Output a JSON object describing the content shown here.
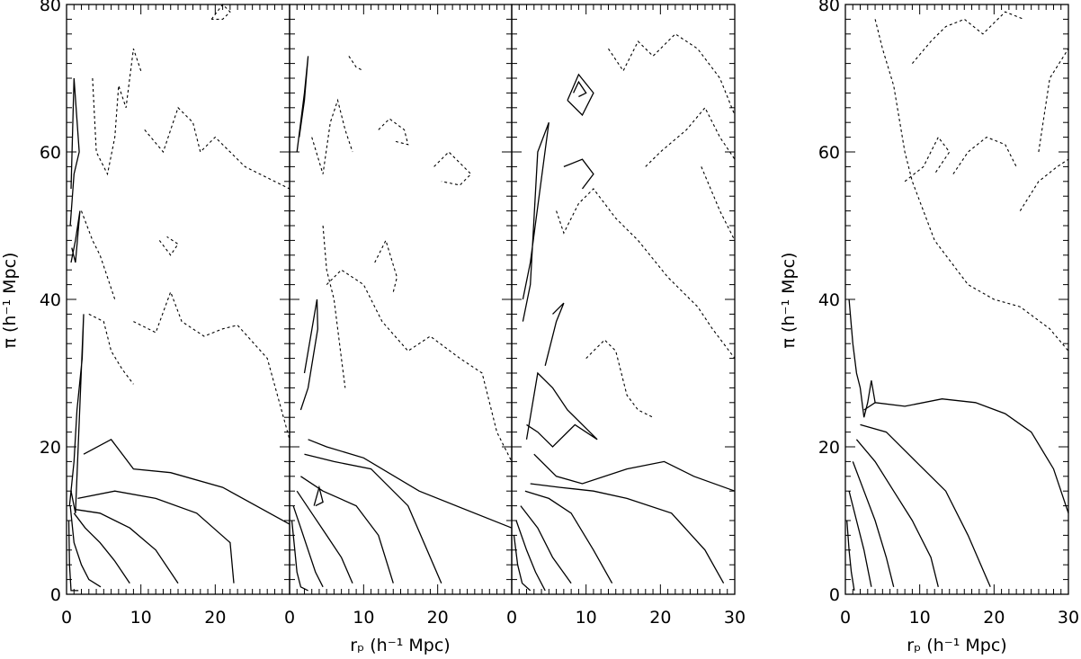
{
  "chart_data": [
    {
      "type": "line",
      "panel": "contour-panel-1",
      "xlabel": "",
      "ylabel": "π (h⁻¹ Mpc)",
      "xlim": [
        0,
        30
      ],
      "ylim": [
        0,
        80
      ],
      "xticks": [
        "0",
        "10",
        "20"
      ],
      "yticks": [
        "0",
        "20",
        "40",
        "60",
        "80"
      ],
      "series": [
        {
          "style": "solid",
          "x": [
            0.3,
            0.4,
            0.6,
            0.9,
            1.3,
            1.6
          ],
          "y": [
            10,
            4,
            0.5,
            0.5,
            0.5,
            0.5
          ]
        },
        {
          "style": "solid",
          "x": [
            0.5,
            1.0,
            2.0,
            3.0,
            4.6
          ],
          "y": [
            12,
            7,
            4,
            2,
            1
          ]
        },
        {
          "style": "solid",
          "x": [
            1.0,
            2.5,
            4.5,
            6.5,
            8.5
          ],
          "y": [
            11,
            9,
            7,
            4.5,
            1.5
          ]
        },
        {
          "style": "solid",
          "x": [
            1.2,
            4.5,
            8.5,
            12.0,
            15.0
          ],
          "y": [
            11.5,
            11,
            9,
            6,
            1.5
          ]
        },
        {
          "style": "solid",
          "x": [
            1.5,
            6.5,
            12.0,
            17.5,
            22.0,
            22.5
          ],
          "y": [
            13,
            14,
            13,
            11,
            7,
            1.5
          ]
        },
        {
          "style": "solid",
          "x": [
            2.3,
            6.0,
            9.0,
            14.0,
            21.0,
            30.0
          ],
          "y": [
            19,
            21,
            17,
            16.5,
            14.5,
            9.5
          ]
        },
        {
          "style": "solid",
          "x": [
            0.4,
            1.0,
            1.4,
            2.1,
            2.3,
            1.2,
            0.6
          ],
          "y": [
            12,
            18,
            25,
            32,
            38,
            11,
            14
          ]
        },
        {
          "style": "solid",
          "x": [
            0.5,
            1.0,
            1.7,
            1.0,
            0.6
          ],
          "y": [
            50,
            57,
            60,
            70,
            55
          ]
        },
        {
          "style": "solid",
          "x": [
            0.6,
            1.2,
            1.8,
            1.2,
            0.7
          ],
          "y": [
            45,
            48,
            52,
            45,
            47
          ]
        },
        {
          "style": "dashed",
          "x": [
            3.5,
            4.0,
            5.5,
            6.5,
            7.0,
            8.0,
            9.0,
            10.0
          ],
          "y": [
            70,
            60,
            57,
            62,
            69,
            66,
            74,
            71
          ]
        },
        {
          "style": "dashed",
          "x": [
            10.5,
            13.0,
            15.0,
            17.0,
            18.0,
            20.0,
            24.0,
            30.0
          ],
          "y": [
            63,
            60,
            66,
            64,
            60,
            62,
            58,
            55
          ]
        },
        {
          "style": "dashed",
          "x": [
            12.5,
            14.0,
            15.0,
            13.5
          ],
          "y": [
            48,
            46,
            47.5,
            48.5
          ]
        },
        {
          "style": "dashed",
          "x": [
            9.0,
            12.0,
            14.0,
            15.5,
            18.5,
            21.0,
            23.0,
            27.0,
            30.0
          ],
          "y": [
            37,
            35.5,
            41,
            37,
            35,
            36,
            36.5,
            32,
            21
          ]
        },
        {
          "style": "dashed",
          "x": [
            3.0,
            5.0,
            6.0,
            7.5,
            9.0
          ],
          "y": [
            38,
            37,
            33,
            30.5,
            28.5
          ]
        },
        {
          "style": "dashed",
          "x": [
            2.0,
            3.5,
            4.5,
            5.5,
            6.5
          ],
          "y": [
            52,
            48,
            46,
            43,
            40
          ]
        },
        {
          "style": "dashed",
          "x": [
            19.5,
            21.0,
            22.0,
            21.0,
            19.5
          ],
          "y": [
            78,
            80,
            79,
            78,
            78
          ]
        }
      ]
    },
    {
      "type": "line",
      "panel": "contour-panel-2",
      "xlabel": "",
      "ylabel": "",
      "xlim": [
        0,
        30
      ],
      "ylim": [
        0,
        80
      ],
      "xticks": [
        "0",
        "10",
        "20"
      ],
      "yticks": [],
      "series": [
        {
          "style": "solid",
          "x": [
            0.3,
            0.7,
            1.0,
            1.5,
            2.5
          ],
          "y": [
            10,
            6,
            3,
            1,
            0.5
          ]
        },
        {
          "style": "solid",
          "x": [
            0.5,
            1.5,
            2.5,
            3.5,
            4.5
          ],
          "y": [
            12,
            9,
            6,
            3,
            1
          ]
        },
        {
          "style": "solid",
          "x": [
            1.0,
            3.0,
            5.0,
            7.0,
            8.5
          ],
          "y": [
            14,
            11,
            8,
            5,
            1.5
          ]
        },
        {
          "style": "solid",
          "x": [
            1.5,
            4.5,
            9.0,
            12.0,
            14.0
          ],
          "y": [
            16,
            14,
            12,
            8,
            1.5
          ]
        },
        {
          "style": "solid",
          "x": [
            2.0,
            6.0,
            11.0,
            16.0,
            20.5
          ],
          "y": [
            19,
            18,
            17,
            12,
            1.5
          ]
        },
        {
          "style": "solid",
          "x": [
            2.5,
            5.0,
            10.0,
            17.5,
            30.0
          ],
          "y": [
            21,
            20,
            18.5,
            14,
            9
          ]
        },
        {
          "style": "solid",
          "x": [
            3.5,
            4.5,
            4.0,
            3.3
          ],
          "y": [
            12,
            12.5,
            14.5,
            12
          ]
        },
        {
          "style": "solid",
          "x": [
            1.5,
            2.5,
            3.8,
            3.7,
            2.0
          ],
          "y": [
            25,
            28,
            36,
            40,
            30
          ]
        },
        {
          "style": "solid",
          "x": [
            1.0,
            2.0,
            2.5,
            2.0,
            1.3
          ],
          "y": [
            60,
            68,
            73,
            67,
            62
          ]
        },
        {
          "style": "dashed",
          "x": [
            5.0,
            7.0,
            10.0,
            12.5,
            16.0,
            19.0,
            23.0,
            26.0,
            28.0,
            30.0
          ],
          "y": [
            42,
            44,
            42,
            37,
            33,
            35,
            32,
            30,
            22,
            18
          ]
        },
        {
          "style": "dashed",
          "x": [
            4.5,
            5.0,
            6.0,
            7.0,
            7.5
          ],
          "y": [
            50,
            44,
            40,
            32,
            28
          ]
        },
        {
          "style": "dashed",
          "x": [
            3.0,
            4.5,
            5.5,
            6.5,
            7.5,
            8.5
          ],
          "y": [
            62,
            57,
            64,
            67,
            63,
            60
          ]
        },
        {
          "style": "dashed",
          "x": [
            12.0,
            13.5,
            15.5,
            16.0,
            14.0
          ],
          "y": [
            63,
            64.5,
            63,
            61,
            61.5
          ]
        },
        {
          "style": "dashed",
          "x": [
            19.5,
            21.5,
            24.5,
            23.0,
            20.5
          ],
          "y": [
            58,
            60,
            57,
            55.5,
            56
          ]
        },
        {
          "style": "dashed",
          "x": [
            8.0,
            9.0,
            10.0
          ],
          "y": [
            73,
            71.5,
            71
          ]
        },
        {
          "style": "dashed",
          "x": [
            11.5,
            13.0,
            14.5,
            14.0
          ],
          "y": [
            45,
            48,
            43,
            41
          ]
        }
      ]
    },
    {
      "type": "line",
      "panel": "contour-panel-3",
      "xlabel": "",
      "ylabel": "",
      "xlim": [
        0,
        30
      ],
      "ylim": [
        0,
        80
      ],
      "xticks": [
        "0",
        "10",
        "20",
        "30"
      ],
      "yticks": [],
      "series": [
        {
          "style": "solid",
          "x": [
            0.3,
            0.8,
            1.4,
            2.5
          ],
          "y": [
            8,
            4,
            1.5,
            0.5
          ]
        },
        {
          "style": "solid",
          "x": [
            0.6,
            2.0,
            3.2,
            4.5
          ],
          "y": [
            10,
            6,
            3,
            0.5
          ]
        },
        {
          "style": "solid",
          "x": [
            1.2,
            3.5,
            5.5,
            8.0
          ],
          "y": [
            12,
            9,
            5,
            1.5
          ]
        },
        {
          "style": "solid",
          "x": [
            1.8,
            5.0,
            8.0,
            11.0,
            13.5
          ],
          "y": [
            14,
            13,
            11,
            6,
            1.5
          ]
        },
        {
          "style": "solid",
          "x": [
            2.5,
            6.5,
            11.0,
            15.5,
            21.5,
            26.0,
            28.5
          ],
          "y": [
            15,
            14.5,
            14,
            13,
            11,
            6,
            1.5
          ]
        },
        {
          "style": "solid",
          "x": [
            3.0,
            6.0,
            9.5,
            15.5,
            20.5,
            24.5,
            30.0
          ],
          "y": [
            19,
            16,
            15,
            17,
            18,
            16,
            14
          ]
        },
        {
          "style": "solid",
          "x": [
            2.0,
            3.5,
            5.5,
            7.5,
            10.5,
            11.5,
            8.5,
            5.5,
            3.5,
            2.0
          ],
          "y": [
            21,
            30,
            28,
            25,
            22,
            21,
            23,
            20,
            22,
            23
          ]
        },
        {
          "style": "solid",
          "x": [
            1.5,
            2.5,
            3.5,
            5.0,
            2.5,
            1.5
          ],
          "y": [
            37,
            42,
            60,
            64,
            45,
            40
          ]
        },
        {
          "style": "solid",
          "x": [
            4.5,
            6.0,
            7.0,
            5.5
          ],
          "y": [
            31,
            37,
            39.5,
            38
          ]
        },
        {
          "style": "solid",
          "x": [
            7.0,
            9.5,
            11.0,
            9.5
          ],
          "y": [
            58,
            59,
            57,
            55
          ]
        },
        {
          "style": "solid",
          "x": [
            7.5,
            9.0,
            11.0,
            9.5,
            7.5
          ],
          "y": [
            67,
            70.5,
            68,
            65,
            67
          ]
        },
        {
          "style": "solid",
          "x": [
            8.3,
            9.0,
            10.0,
            9.0
          ],
          "y": [
            68,
            69.5,
            68,
            67.5
          ]
        },
        {
          "style": "dashed",
          "x": [
            6.0,
            7.0,
            9.0,
            11.0,
            14.0,
            17.0,
            21.0,
            25.0,
            27.0,
            30.0
          ],
          "y": [
            52,
            49,
            53,
            55,
            51,
            48,
            43,
            39,
            36,
            32
          ]
        },
        {
          "style": "dashed",
          "x": [
            13.0,
            15.0,
            17.0,
            19.0,
            22.0,
            25.0,
            28.0,
            30.0
          ],
          "y": [
            74,
            71,
            75,
            73,
            76,
            74,
            70,
            65
          ]
        },
        {
          "style": "dashed",
          "x": [
            18.0,
            20.0,
            23.5,
            26.0,
            28.0,
            30.0
          ],
          "y": [
            58,
            60,
            63,
            66,
            62,
            59
          ]
        },
        {
          "style": "dashed",
          "x": [
            25.5,
            28.0,
            30.0
          ],
          "y": [
            58,
            52,
            48
          ]
        },
        {
          "style": "dashed",
          "x": [
            10.0,
            12.5,
            14.0,
            15.5,
            17.0,
            19.0
          ],
          "y": [
            32,
            34.5,
            33,
            27,
            25,
            24
          ]
        }
      ]
    },
    {
      "type": "line",
      "panel": "contour-panel-4",
      "xlabel": "r_p (h⁻¹ Mpc)",
      "ylabel": "π (h⁻¹ Mpc)",
      "xlim": [
        0,
        30
      ],
      "ylim": [
        0,
        80
      ],
      "xticks": [
        "0",
        "10",
        "20",
        "30"
      ],
      "yticks": [
        "0",
        "20",
        "40",
        "60",
        "80"
      ],
      "series": [
        {
          "style": "solid",
          "x": [
            0.2,
            0.5,
            0.8,
            1.2
          ],
          "y": [
            10,
            6,
            3,
            0.5
          ]
        },
        {
          "style": "solid",
          "x": [
            0.5,
            1.5,
            2.5,
            3.5
          ],
          "y": [
            14,
            10,
            6,
            1
          ]
        },
        {
          "style": "solid",
          "x": [
            1.0,
            2.5,
            4.0,
            5.5,
            6.5
          ],
          "y": [
            18,
            14,
            10,
            5,
            1
          ]
        },
        {
          "style": "solid",
          "x": [
            1.5,
            4.0,
            6.5,
            9.0,
            11.5,
            12.5
          ],
          "y": [
            21,
            18,
            14,
            10,
            5,
            1
          ]
        },
        {
          "style": "solid",
          "x": [
            2.0,
            5.5,
            9.5,
            13.5,
            16.5,
            19.5
          ],
          "y": [
            23,
            22,
            18,
            14,
            8,
            1
          ]
        },
        {
          "style": "solid",
          "x": [
            2.5,
            4.0,
            8.0,
            13.0,
            17.5,
            21.5,
            25.0,
            28.0,
            30.0
          ],
          "y": [
            25,
            26,
            25.5,
            26.5,
            26,
            24.5,
            22,
            17,
            11
          ]
        },
        {
          "style": "solid",
          "x": [
            0.5,
            1.0,
            1.5,
            2.0,
            2.5,
            3.0,
            3.5,
            4.0
          ],
          "y": [
            40,
            34,
            30,
            28,
            24,
            26,
            29,
            26
          ]
        },
        {
          "style": "dashed",
          "x": [
            4.0,
            5.0,
            6.5,
            8.0,
            9.0,
            12.0,
            16.5,
            20.0,
            23.5,
            27.5,
            30.0
          ],
          "y": [
            78,
            74,
            69,
            60,
            56,
            48,
            42,
            40,
            39,
            36,
            33
          ]
        },
        {
          "style": "dashed",
          "x": [
            8.0,
            10.5,
            12.5,
            14.0,
            12.0
          ],
          "y": [
            56,
            58,
            62,
            60,
            57
          ]
        },
        {
          "style": "dashed",
          "x": [
            14.5,
            16.5,
            19.0,
            21.5,
            23.0
          ],
          "y": [
            57,
            60,
            62,
            61,
            58
          ]
        },
        {
          "style": "dashed",
          "x": [
            23.5,
            26.0,
            28.5,
            30.0
          ],
          "y": [
            52,
            56,
            58,
            59
          ]
        },
        {
          "style": "dashed",
          "x": [
            26.0,
            27.5,
            30.0
          ],
          "y": [
            60,
            70,
            74
          ]
        },
        {
          "style": "dashed",
          "x": [
            9.0,
            11.5,
            13.5,
            16.0,
            18.5,
            21.5,
            24.0
          ],
          "y": [
            72,
            75,
            77,
            78,
            76,
            79,
            78
          ]
        }
      ]
    }
  ],
  "labels": {
    "y_axis_left": "π (h⁻¹ Mpc)",
    "y_axis_right": "π (h⁻¹ Mpc)",
    "x_axis_left": "rₚ (h⁻¹ Mpc)",
    "x_axis_right": "rₚ (h⁻¹ Mpc)"
  }
}
